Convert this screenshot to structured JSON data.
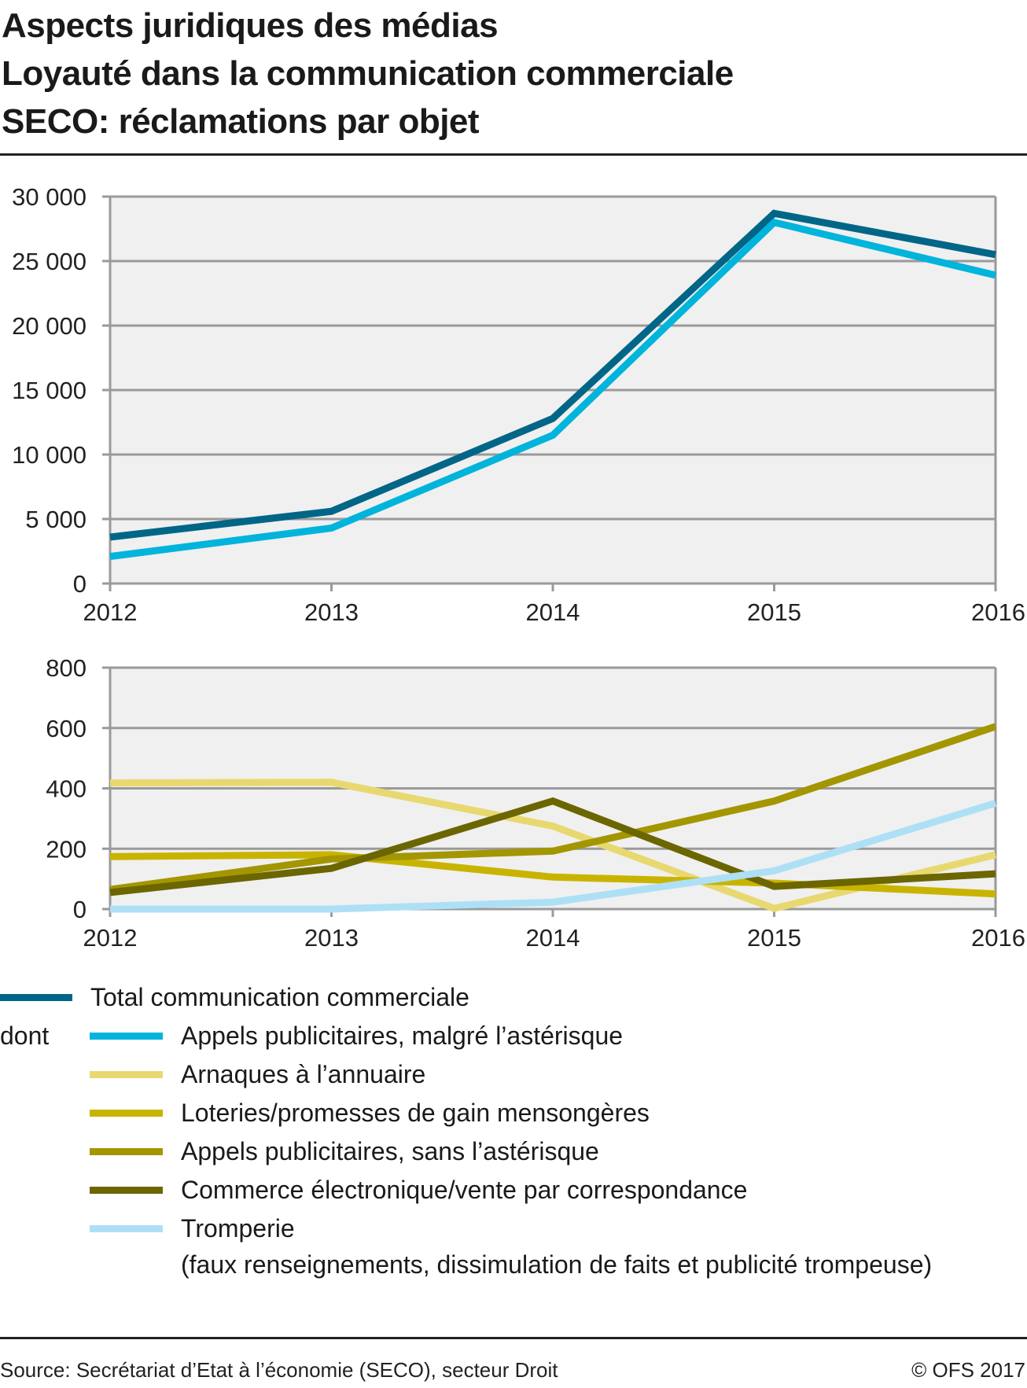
{
  "title": {
    "lines": [
      "Aspects juridiques des médias",
      "Loyauté dans la communication commerciale",
      "SECO: réclamations par objet"
    ]
  },
  "chart_data": [
    {
      "type": "line",
      "title": "",
      "xlabel": "",
      "ylabel": "",
      "x": [
        "2012",
        "2013",
        "2014",
        "2015",
        "2016"
      ],
      "ylim": [
        0,
        30000
      ],
      "yticks": [
        0,
        5000,
        10000,
        15000,
        20000,
        25000,
        30000
      ],
      "ytick_labels": [
        "0",
        "5 000",
        "10 000",
        "15 000",
        "20 000",
        "25 000",
        "30 000"
      ],
      "grid": true,
      "series": [
        {
          "name": "Total communication commerciale",
          "color": "#006688",
          "values": [
            3600,
            5600,
            12800,
            28700,
            25500
          ]
        },
        {
          "name": "Appels publicitaires, malgré l’astérisque",
          "color": "#00b4dc",
          "values": [
            2100,
            4300,
            11500,
            28000,
            23900
          ]
        }
      ]
    },
    {
      "type": "line",
      "title": "",
      "xlabel": "",
      "ylabel": "",
      "x": [
        "2012",
        "2013",
        "2014",
        "2015",
        "2016"
      ],
      "ylim": [
        0,
        800
      ],
      "yticks": [
        0,
        200,
        400,
        600,
        800
      ],
      "ytick_labels": [
        "0",
        "200",
        "400",
        "600",
        "800"
      ],
      "grid": true,
      "series": [
        {
          "name": "Arnaques à l’annuaire",
          "color": "#e8d870",
          "values": [
            418,
            420,
            275,
            2,
            180
          ]
        },
        {
          "name": "Loteries/promesses de gain mensongères",
          "color": "#c8b400",
          "values": [
            174,
            180,
            106,
            86,
            50
          ]
        },
        {
          "name": "Appels publicitaires, sans l’astérisque",
          "color": "#a39600",
          "values": [
            65,
            166,
            192,
            358,
            605
          ]
        },
        {
          "name": "Commerce électronique/vente par correspondance",
          "color": "#6b6600",
          "values": [
            55,
            135,
            358,
            75,
            117
          ]
        },
        {
          "name": "Tromperie (faux renseignements, dissimulation de faits et publicité trompeuse)",
          "color": "#aee0f5",
          "values": [
            0,
            0,
            23,
            127,
            351
          ]
        }
      ]
    }
  ],
  "legend": {
    "dont_label": "dont",
    "items": [
      {
        "label": "Total communication commerciale",
        "color": "#006688"
      },
      {
        "label": "Appels publicitaires, malgré l’astérisque",
        "color": "#00b4dc"
      },
      {
        "label": "Arnaques à l’annuaire",
        "color": "#e8d870"
      },
      {
        "label": "Loteries/promesses de gain mensongères",
        "color": "#c8b400"
      },
      {
        "label": "Appels publicitaires, sans l’astérisque",
        "color": "#a39600"
      },
      {
        "label": "Commerce électronique/vente par correspondance",
        "color": "#6b6600"
      },
      {
        "label": "Tromperie",
        "label2": "(faux renseignements, dissimulation de faits et publicité trompeuse)",
        "color": "#aee0f5"
      }
    ]
  },
  "footer": {
    "source": "Source: Secrétariat d’Etat à l’économie (SECO), secteur Droit",
    "copyright": "© OFS 2017"
  }
}
